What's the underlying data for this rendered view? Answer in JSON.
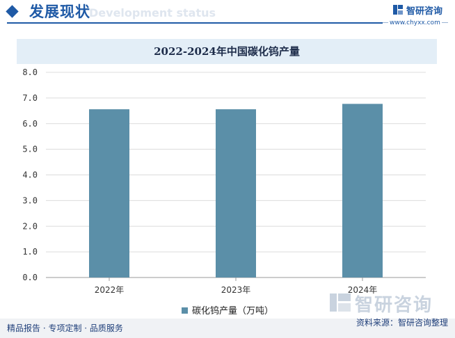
{
  "header": {
    "title": "发展现状",
    "subtitle_faint": "Development status"
  },
  "brand": {
    "name": "智研咨询",
    "url": "www.chyxx.com",
    "watermark_name": "智研咨询"
  },
  "chart_data": {
    "type": "bar",
    "title": "2022-2024年中国碳化钨产量",
    "categories": [
      "2022年",
      "2023年",
      "2024年"
    ],
    "series": [
      {
        "name": "碳化钨产量（万吨）",
        "values": [
          6.56,
          6.56,
          6.77
        ]
      }
    ],
    "ylim": [
      0,
      8
    ],
    "yticks": [
      "0.0",
      "1.0",
      "2.0",
      "3.0",
      "4.0",
      "5.0",
      "6.0",
      "7.0",
      "8.0"
    ],
    "grid": true,
    "legend_position": "bottom",
    "bar_color": "#5b8fa8"
  },
  "footer": {
    "left": "精品报告 · 专项定制 · 品质服务",
    "source": "资料来源：智研咨询整理"
  }
}
